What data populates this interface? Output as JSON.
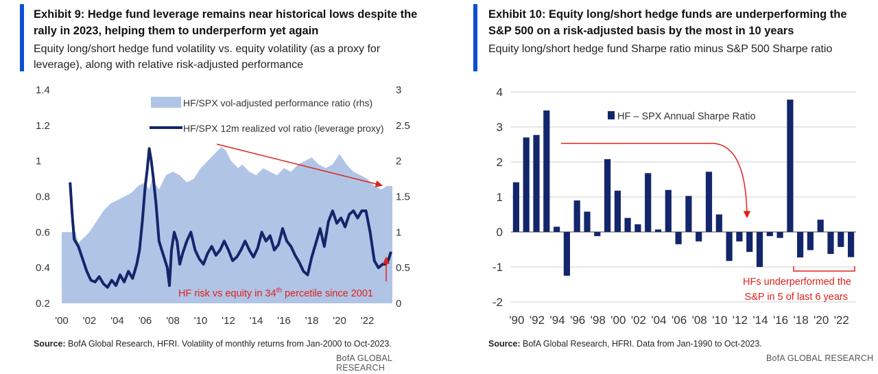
{
  "left": {
    "title": "Exhibit 9: Hedge fund leverage remains near historical lows despite the rally in 2023, helping them to underperform yet again",
    "subtitle": "Equity long/short hedge fund volatility vs. equity volatility (as a proxy for leverage), along with relative risk-adjusted performance",
    "source_label": "Source:",
    "source_text": " BofA Global Research, HFRI. Volatility of monthly returns from Jan-2000 to Oct-2023.",
    "brand": "BofA GLOBAL RESEARCH",
    "annotation": "HF risk vs equity in 34",
    "annotation_sup": "th",
    "annotation_tail": " percetile since 2001"
  },
  "right": {
    "title": "Exhibit 10: Equity long/short hedge funds are underperforming the S&P 500 on a risk-adjusted basis by the most in 10 years",
    "subtitle": "Equity long/short hedge fund Sharpe ratio minus S&P 500 Sharpe ratio",
    "source_label": "Source:",
    "source_text": " BofA Global Research, HFRI. Data from Jan-1990 to Oct-2023.",
    "brand": "BofA GLOBAL RESEARCH",
    "annotation_line1": "HFs underperformed the",
    "annotation_line2": "S&P in 5 of last 6 years"
  },
  "colors": {
    "navy": "#13266b",
    "area": "#b0c4e6",
    "red": "#e0201b",
    "grid": "#cfcfcf",
    "accent": "#0b4fd1"
  },
  "chart_data": [
    {
      "type": "line",
      "ylim_left": [
        0.2,
        1.4
      ],
      "ylim_right": [
        0,
        3
      ],
      "yticks_left": [
        "0.2",
        "0.4",
        "0.6",
        "0.8",
        "1",
        "1.2",
        "1.4"
      ],
      "yticks_right": [
        "0",
        "0.5",
        "1",
        "1.5",
        "2",
        "2.5",
        "3"
      ],
      "xticks": [
        "'00",
        "'02",
        "'04",
        "'06",
        "'08",
        "'10",
        "'12",
        "'14",
        "'16",
        "'18",
        "'20",
        "'22"
      ],
      "xlim": [
        2000.0,
        2023.8
      ],
      "grid": false,
      "legend_position": "top",
      "series": [
        {
          "name": "HF/SPX vol-adjusted performance ratio (rhs)",
          "kind": "area",
          "axis": "right",
          "x": [
            2000.0,
            2001.0,
            2001.2,
            2002.0,
            2002.5,
            2003.0,
            2003.5,
            2004.0,
            2004.5,
            2005.0,
            2005.5,
            2006.0,
            2006.3,
            2006.5,
            2007.0,
            2007.5,
            2008.0,
            2008.5,
            2009.0,
            2009.5,
            2010.0,
            2010.5,
            2011.0,
            2011.5,
            2011.8,
            2012.2,
            2012.7,
            2013.0,
            2013.5,
            2014.0,
            2014.5,
            2015.0,
            2015.5,
            2016.0,
            2016.5,
            2017.0,
            2017.5,
            2018.0,
            2018.5,
            2019.0,
            2019.5,
            2020.0,
            2020.5,
            2021.0,
            2021.5,
            2022.0,
            2022.5,
            2023.0,
            2023.4,
            2023.8
          ],
          "values": [
            1.0,
            1.0,
            0.85,
            1.0,
            1.15,
            1.3,
            1.4,
            1.45,
            1.5,
            1.55,
            1.65,
            1.7,
            1.6,
            1.75,
            1.6,
            1.8,
            1.85,
            1.8,
            1.7,
            1.75,
            1.9,
            2.0,
            2.1,
            2.2,
            2.15,
            2.0,
            1.9,
            1.95,
            1.85,
            1.8,
            1.9,
            1.85,
            1.8,
            1.9,
            1.85,
            1.95,
            2.0,
            2.05,
            1.95,
            1.9,
            1.95,
            2.1,
            1.95,
            1.85,
            1.8,
            1.75,
            1.65,
            1.6,
            1.65,
            1.65
          ]
        },
        {
          "name": "HF/SPX 12m realized vol ratio (leverage proxy)",
          "kind": "line",
          "axis": "left",
          "x": [
            2000.6,
            2000.75,
            2000.9,
            2001.2,
            2001.5,
            2001.8,
            2002.1,
            2002.4,
            2002.7,
            2003.0,
            2003.3,
            2003.6,
            2003.9,
            2004.2,
            2004.5,
            2004.8,
            2005.1,
            2005.4,
            2005.6,
            2005.8,
            2006.0,
            2006.15,
            2006.3,
            2006.45,
            2006.6,
            2006.8,
            2007.0,
            2007.2,
            2007.4,
            2007.6,
            2007.75,
            2007.9,
            2008.1,
            2008.3,
            2008.5,
            2008.7,
            2009.0,
            2009.3,
            2009.6,
            2009.9,
            2010.2,
            2010.5,
            2010.8,
            2011.1,
            2011.4,
            2011.7,
            2012.0,
            2012.3,
            2012.6,
            2012.9,
            2013.2,
            2013.5,
            2013.8,
            2014.1,
            2014.4,
            2014.7,
            2015.0,
            2015.3,
            2015.6,
            2015.9,
            2016.2,
            2016.5,
            2016.8,
            2017.1,
            2017.4,
            2017.7,
            2018.0,
            2018.3,
            2018.6,
            2018.9,
            2019.2,
            2019.5,
            2019.8,
            2020.1,
            2020.4,
            2020.7,
            2021.0,
            2021.3,
            2021.6,
            2021.9,
            2022.2,
            2022.5,
            2022.8,
            2023.1,
            2023.3,
            2023.5,
            2023.7
          ],
          "values": [
            0.88,
            0.7,
            0.56,
            0.52,
            0.45,
            0.38,
            0.33,
            0.32,
            0.35,
            0.31,
            0.29,
            0.33,
            0.3,
            0.36,
            0.32,
            0.38,
            0.34,
            0.42,
            0.5,
            0.66,
            0.85,
            0.95,
            1.07,
            1.0,
            0.9,
            0.75,
            0.55,
            0.5,
            0.45,
            0.4,
            0.3,
            0.5,
            0.6,
            0.55,
            0.42,
            0.48,
            0.55,
            0.6,
            0.5,
            0.45,
            0.42,
            0.48,
            0.52,
            0.47,
            0.5,
            0.55,
            0.5,
            0.44,
            0.46,
            0.5,
            0.55,
            0.5,
            0.46,
            0.51,
            0.6,
            0.55,
            0.58,
            0.5,
            0.53,
            0.62,
            0.55,
            0.52,
            0.47,
            0.43,
            0.38,
            0.36,
            0.46,
            0.54,
            0.62,
            0.52,
            0.66,
            0.72,
            0.65,
            0.68,
            0.63,
            0.7,
            0.72,
            0.68,
            0.72,
            0.72,
            0.6,
            0.44,
            0.4,
            0.42,
            0.42,
            0.44,
            0.49
          ]
        }
      ]
    },
    {
      "type": "bar",
      "title": "",
      "ylim": [
        -2,
        4
      ],
      "yticks": [
        "-2",
        "-1",
        "0",
        "1",
        "2",
        "3",
        "4"
      ],
      "xticks": [
        "'90",
        "'92",
        "'94",
        "'96",
        "'98",
        "'00",
        "'02",
        "'04",
        "'06",
        "'08",
        "'10",
        "'12",
        "'14",
        "'16",
        "'18",
        "'20",
        "'22"
      ],
      "grid": true,
      "legend_position": "top",
      "categories": [
        "1990",
        "1991",
        "1992",
        "1993",
        "1994",
        "1995",
        "1996",
        "1997",
        "1998",
        "1999",
        "2000",
        "2001",
        "2002",
        "2003",
        "2004",
        "2005",
        "2006",
        "2007",
        "2008",
        "2009",
        "2010",
        "2011",
        "2012",
        "2013",
        "2014",
        "2015",
        "2016",
        "2017",
        "2018",
        "2019",
        "2020",
        "2021",
        "2022",
        "2023"
      ],
      "series": [
        {
          "name": "HF – SPX Annual Sharpe Ratio",
          "values": [
            1.42,
            2.7,
            2.77,
            3.47,
            0.15,
            -1.25,
            0.9,
            0.58,
            -0.12,
            2.08,
            1.18,
            0.4,
            0.22,
            1.68,
            0.07,
            1.2,
            -0.35,
            1.03,
            -0.27,
            1.72,
            0.5,
            -0.83,
            -0.27,
            -0.57,
            -1.0,
            -0.12,
            -0.17,
            3.78,
            -0.73,
            -0.52,
            0.35,
            -0.63,
            -0.43,
            -0.72
          ]
        }
      ]
    }
  ]
}
